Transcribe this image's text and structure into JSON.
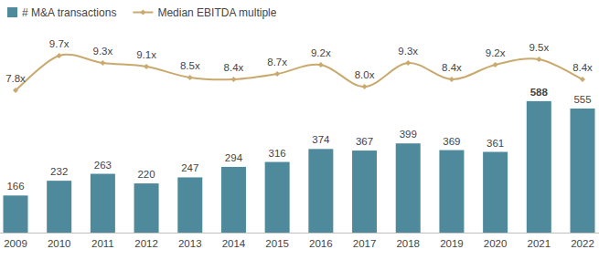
{
  "chart_data": {
    "type": "bar",
    "categories": [
      "2009",
      "2010",
      "2011",
      "2012",
      "2013",
      "2014",
      "2015",
      "2016",
      "2017",
      "2018",
      "2019",
      "2020",
      "2021",
      "2022"
    ],
    "series": [
      {
        "name": "# M&A transactions",
        "type": "bar",
        "color": "#4e8a9c",
        "values": [
          166,
          232,
          263,
          220,
          247,
          294,
          316,
          374,
          367,
          399,
          369,
          361,
          588,
          555
        ]
      },
      {
        "name": "Median EBITDA multiple",
        "type": "line",
        "color": "#c9a96e",
        "axis": "y2",
        "marker": "diamond",
        "values": [
          7.8,
          9.7,
          9.3,
          9.1,
          8.5,
          8.4,
          8.7,
          9.2,
          8.0,
          9.3,
          8.4,
          9.2,
          9.5,
          8.4
        ],
        "value_labels": [
          "7.8x",
          "9.7x",
          "9.3x",
          "9.1x",
          "8.5x",
          "8.4x",
          "8.7x",
          "9.2x",
          "8.0x",
          "9.3x",
          "8.4x",
          "9.2x",
          "9.5x",
          "8.4x"
        ]
      }
    ],
    "ylim": [
      0,
      1020
    ],
    "y2lim": [
      0,
      12.5
    ],
    "data_labels": true,
    "tick_labels": "x",
    "legend": "top-left",
    "grid": false
  }
}
